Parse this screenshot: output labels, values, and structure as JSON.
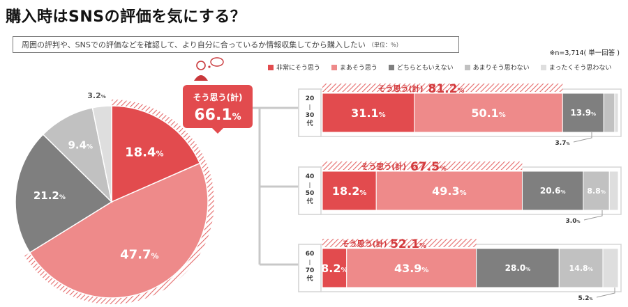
{
  "title": "購入時はSNSの評価を気にする？",
  "question": "周囲の評判や、SNSでの評価などを確認して、より自分に合っているか情報収集してから購入したい",
  "unit": "（単位：％）",
  "sample_note": "※n=3,714( 単一回答 )",
  "colors": {
    "very": "#e24b4e",
    "somewhat": "#ee8a8a",
    "neutral": "#7f7f7f",
    "not_much": "#c1c1c1",
    "not_at_all": "#dedede",
    "hatch": "#e56a6a"
  },
  "chart_data": [
    {
      "type": "pie",
      "callout": {
        "label": "そう思う(計)",
        "value": "66.1"
      },
      "slices": [
        {
          "name": "非常にそう思う",
          "value": 18.4,
          "label": "18.4"
        },
        {
          "name": "まあそう思う",
          "value": 47.7,
          "label": "47.7"
        },
        {
          "name": "どちらともいえない",
          "value": 21.2,
          "label": "21.2"
        },
        {
          "name": "あまりそう思わない",
          "value": 9.4,
          "label": "9.4"
        },
        {
          "name": "まったくそう思わない",
          "value": 3.2,
          "label": "3.2"
        }
      ]
    },
    {
      "type": "bar",
      "orientation": "horizontal",
      "stacked": true,
      "legend": [
        "非常にそう思う",
        "まあそう思う",
        "どちらともいえない",
        "あまりそう思わない",
        "まったくそう思わない"
      ],
      "categories": [
        {
          "label": [
            "20",
            "|",
            "30",
            "代"
          ],
          "total_label": "そう思う(計)",
          "total": "81.2",
          "values": [
            31.1,
            50.1,
            13.9,
            3.7,
            1.2
          ],
          "labels": [
            "31.1",
            "50.1",
            "13.9",
            "",
            ""
          ],
          "outside_label": "3.7"
        },
        {
          "label": [
            "40",
            "|",
            "50",
            "代"
          ],
          "total_label": "そう思う(計)",
          "total": "67.5",
          "values": [
            18.2,
            49.3,
            20.6,
            8.8,
            3.0
          ],
          "labels": [
            "18.2",
            "49.3",
            "20.6",
            "8.8",
            ""
          ],
          "outside_label": "3.0"
        },
        {
          "label": [
            "60",
            "|",
            "70",
            "代"
          ],
          "total_label": "そう思う(計)",
          "total": "52.1",
          "values": [
            8.2,
            43.9,
            28.0,
            14.8,
            5.2
          ],
          "labels": [
            "8.2",
            "43.9",
            "28.0",
            "14.8",
            ""
          ],
          "outside_label": "5.2"
        }
      ],
      "percent_sign": "%"
    }
  ]
}
